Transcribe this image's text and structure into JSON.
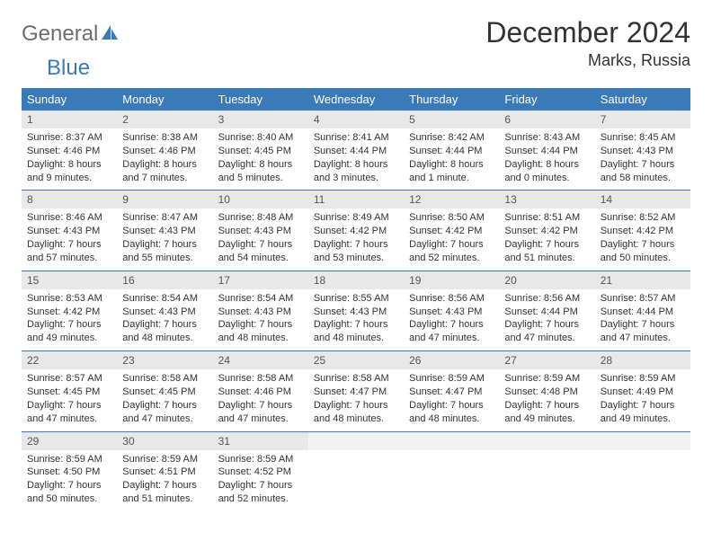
{
  "brand": {
    "general": "General",
    "blue": "Blue"
  },
  "title": "December 2024",
  "location": "Marks, Russia",
  "colors": {
    "accent": "#3a7ab8",
    "header_bg": "#3a7ab8",
    "header_text": "#ffffff",
    "daynum_bg": "#e8e8e8",
    "empty_bg": "#f2f2f2",
    "text": "#333333",
    "logo_gray": "#6d6d6d"
  },
  "weekdays": [
    "Sunday",
    "Monday",
    "Tuesday",
    "Wednesday",
    "Thursday",
    "Friday",
    "Saturday"
  ],
  "days": [
    {
      "n": "1",
      "sr": "Sunrise: 8:37 AM",
      "ss": "Sunset: 4:46 PM",
      "dl": "Daylight: 8 hours and 9 minutes."
    },
    {
      "n": "2",
      "sr": "Sunrise: 8:38 AM",
      "ss": "Sunset: 4:46 PM",
      "dl": "Daylight: 8 hours and 7 minutes."
    },
    {
      "n": "3",
      "sr": "Sunrise: 8:40 AM",
      "ss": "Sunset: 4:45 PM",
      "dl": "Daylight: 8 hours and 5 minutes."
    },
    {
      "n": "4",
      "sr": "Sunrise: 8:41 AM",
      "ss": "Sunset: 4:44 PM",
      "dl": "Daylight: 8 hours and 3 minutes."
    },
    {
      "n": "5",
      "sr": "Sunrise: 8:42 AM",
      "ss": "Sunset: 4:44 PM",
      "dl": "Daylight: 8 hours and 1 minute."
    },
    {
      "n": "6",
      "sr": "Sunrise: 8:43 AM",
      "ss": "Sunset: 4:44 PM",
      "dl": "Daylight: 8 hours and 0 minutes."
    },
    {
      "n": "7",
      "sr": "Sunrise: 8:45 AM",
      "ss": "Sunset: 4:43 PM",
      "dl": "Daylight: 7 hours and 58 minutes."
    },
    {
      "n": "8",
      "sr": "Sunrise: 8:46 AM",
      "ss": "Sunset: 4:43 PM",
      "dl": "Daylight: 7 hours and 57 minutes."
    },
    {
      "n": "9",
      "sr": "Sunrise: 8:47 AM",
      "ss": "Sunset: 4:43 PM",
      "dl": "Daylight: 7 hours and 55 minutes."
    },
    {
      "n": "10",
      "sr": "Sunrise: 8:48 AM",
      "ss": "Sunset: 4:43 PM",
      "dl": "Daylight: 7 hours and 54 minutes."
    },
    {
      "n": "11",
      "sr": "Sunrise: 8:49 AM",
      "ss": "Sunset: 4:42 PM",
      "dl": "Daylight: 7 hours and 53 minutes."
    },
    {
      "n": "12",
      "sr": "Sunrise: 8:50 AM",
      "ss": "Sunset: 4:42 PM",
      "dl": "Daylight: 7 hours and 52 minutes."
    },
    {
      "n": "13",
      "sr": "Sunrise: 8:51 AM",
      "ss": "Sunset: 4:42 PM",
      "dl": "Daylight: 7 hours and 51 minutes."
    },
    {
      "n": "14",
      "sr": "Sunrise: 8:52 AM",
      "ss": "Sunset: 4:42 PM",
      "dl": "Daylight: 7 hours and 50 minutes."
    },
    {
      "n": "15",
      "sr": "Sunrise: 8:53 AM",
      "ss": "Sunset: 4:42 PM",
      "dl": "Daylight: 7 hours and 49 minutes."
    },
    {
      "n": "16",
      "sr": "Sunrise: 8:54 AM",
      "ss": "Sunset: 4:43 PM",
      "dl": "Daylight: 7 hours and 48 minutes."
    },
    {
      "n": "17",
      "sr": "Sunrise: 8:54 AM",
      "ss": "Sunset: 4:43 PM",
      "dl": "Daylight: 7 hours and 48 minutes."
    },
    {
      "n": "18",
      "sr": "Sunrise: 8:55 AM",
      "ss": "Sunset: 4:43 PM",
      "dl": "Daylight: 7 hours and 48 minutes."
    },
    {
      "n": "19",
      "sr": "Sunrise: 8:56 AM",
      "ss": "Sunset: 4:43 PM",
      "dl": "Daylight: 7 hours and 47 minutes."
    },
    {
      "n": "20",
      "sr": "Sunrise: 8:56 AM",
      "ss": "Sunset: 4:44 PM",
      "dl": "Daylight: 7 hours and 47 minutes."
    },
    {
      "n": "21",
      "sr": "Sunrise: 8:57 AM",
      "ss": "Sunset: 4:44 PM",
      "dl": "Daylight: 7 hours and 47 minutes."
    },
    {
      "n": "22",
      "sr": "Sunrise: 8:57 AM",
      "ss": "Sunset: 4:45 PM",
      "dl": "Daylight: 7 hours and 47 minutes."
    },
    {
      "n": "23",
      "sr": "Sunrise: 8:58 AM",
      "ss": "Sunset: 4:45 PM",
      "dl": "Daylight: 7 hours and 47 minutes."
    },
    {
      "n": "24",
      "sr": "Sunrise: 8:58 AM",
      "ss": "Sunset: 4:46 PM",
      "dl": "Daylight: 7 hours and 47 minutes."
    },
    {
      "n": "25",
      "sr": "Sunrise: 8:58 AM",
      "ss": "Sunset: 4:47 PM",
      "dl": "Daylight: 7 hours and 48 minutes."
    },
    {
      "n": "26",
      "sr": "Sunrise: 8:59 AM",
      "ss": "Sunset: 4:47 PM",
      "dl": "Daylight: 7 hours and 48 minutes."
    },
    {
      "n": "27",
      "sr": "Sunrise: 8:59 AM",
      "ss": "Sunset: 4:48 PM",
      "dl": "Daylight: 7 hours and 49 minutes."
    },
    {
      "n": "28",
      "sr": "Sunrise: 8:59 AM",
      "ss": "Sunset: 4:49 PM",
      "dl": "Daylight: 7 hours and 49 minutes."
    },
    {
      "n": "29",
      "sr": "Sunrise: 8:59 AM",
      "ss": "Sunset: 4:50 PM",
      "dl": "Daylight: 7 hours and 50 minutes."
    },
    {
      "n": "30",
      "sr": "Sunrise: 8:59 AM",
      "ss": "Sunset: 4:51 PM",
      "dl": "Daylight: 7 hours and 51 minutes."
    },
    {
      "n": "31",
      "sr": "Sunrise: 8:59 AM",
      "ss": "Sunset: 4:52 PM",
      "dl": "Daylight: 7 hours and 52 minutes."
    }
  ],
  "grid": {
    "start_offset": 0,
    "total_cells": 35
  }
}
